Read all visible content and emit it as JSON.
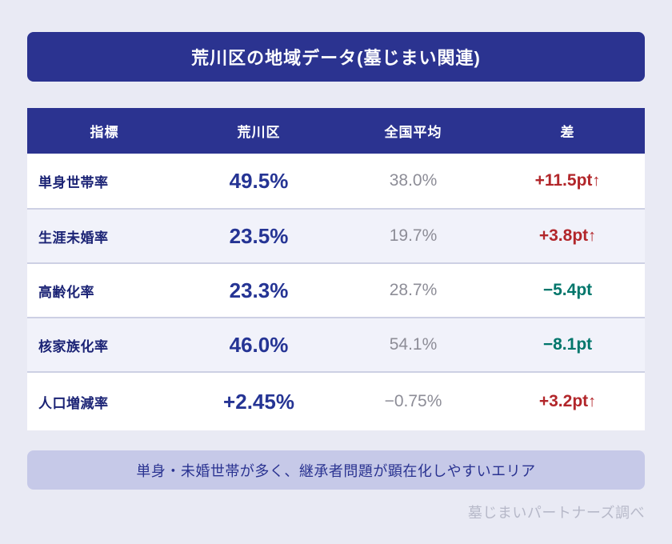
{
  "title": "荒川区の地域データ(墓じまい関連)",
  "table": {
    "headers": [
      "指標",
      "荒川区",
      "全国平均",
      "差"
    ],
    "rows": [
      {
        "label": "単身世帯率",
        "arakawa": "49.5%",
        "national": "38.0%",
        "diff": "+11.5pt",
        "arrow": "↑",
        "trend": "up"
      },
      {
        "label": "生涯未婚率",
        "arakawa": "23.5%",
        "national": "19.7%",
        "diff": "+3.8pt",
        "arrow": "↑",
        "trend": "up"
      },
      {
        "label": "高齢化率",
        "arakawa": "23.3%",
        "national": "28.7%",
        "diff": "−5.4pt",
        "arrow": "",
        "trend": "down"
      },
      {
        "label": "核家族化率",
        "arakawa": "46.0%",
        "national": "54.1%",
        "diff": "−8.1pt",
        "arrow": "",
        "trend": "down"
      },
      {
        "label": "人口増減率",
        "arakawa": "+2.45%",
        "national": "−0.75%",
        "diff": "+3.2pt",
        "arrow": "↑",
        "trend": "up"
      }
    ]
  },
  "footer": {
    "note": "単身・未婚世帯が多く、継承者問題が顕在化しやすいエリア",
    "attribution": "墓じまいパートナーズ調べ"
  },
  "colors": {
    "background": "#e9eaf4",
    "primary": "#2b3390",
    "value_navy": "#253494",
    "label_navy": "#1b2375",
    "national_gray": "#8d8d97",
    "diff_up_red": "#b2262a",
    "diff_down_teal": "#00766b",
    "stripe_row": "#f1f2fa",
    "row_separator": "#cdd0e4",
    "note_bg": "#c6c9e8",
    "attribution_gray": "#b6b8c8"
  },
  "chart_data": {
    "type": "table",
    "title": "荒川区の地域データ(墓じまい関連)",
    "columns": [
      "指標",
      "荒川区",
      "全国平均",
      "差"
    ],
    "rows": [
      {
        "indicator": "単身世帯率",
        "arakawa_pct": 49.5,
        "national_pct": 38.0,
        "diff_pt": 11.5
      },
      {
        "indicator": "生涯未婚率",
        "arakawa_pct": 23.5,
        "national_pct": 19.7,
        "diff_pt": 3.8
      },
      {
        "indicator": "高齢化率",
        "arakawa_pct": 23.3,
        "national_pct": 28.7,
        "diff_pt": -5.4
      },
      {
        "indicator": "核家族化率",
        "arakawa_pct": 46.0,
        "national_pct": 54.1,
        "diff_pt": -8.1
      },
      {
        "indicator": "人口増減率",
        "arakawa_pct": 2.45,
        "national_pct": -0.75,
        "diff_pt": 3.2
      }
    ],
    "note": "単身・未婚世帯が多く、継承者問題が顕在化しやすいエリア",
    "source": "墓じまいパートナーズ調べ"
  }
}
